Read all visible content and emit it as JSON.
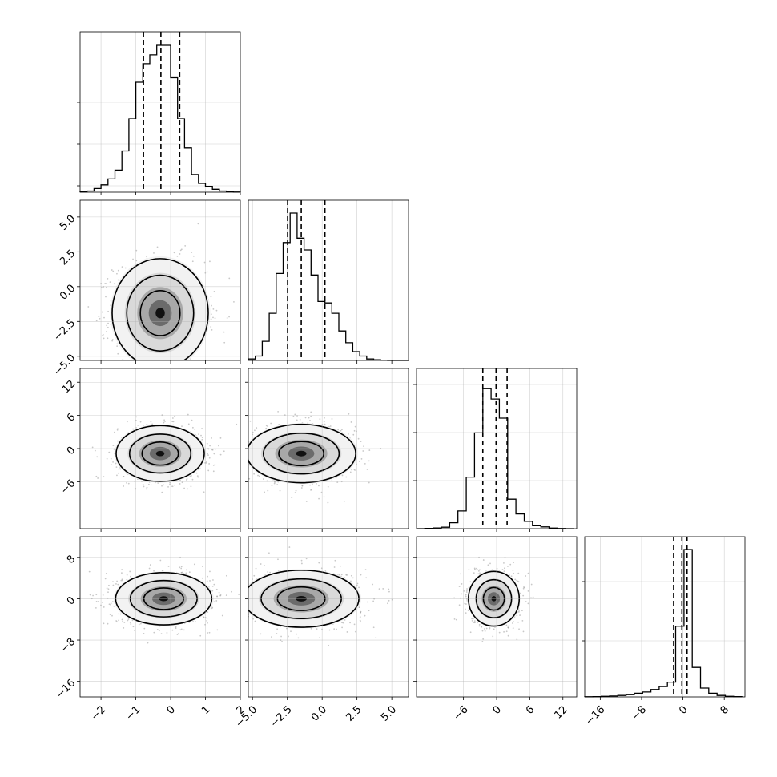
{
  "chart_data": {
    "type": "corner",
    "n_params": 4,
    "grid": true,
    "params": [
      {
        "lim": [
          -2.6,
          2.0
        ],
        "ticks": [
          -2,
          -1,
          0,
          1,
          2
        ],
        "tick_labels": [
          "−2",
          "−1",
          "0",
          "1",
          "2"
        ],
        "quantiles": [
          -0.78,
          -0.28,
          0.26
        ],
        "hist": {
          "edges": [
            -2.6,
            -2.4,
            -2.2,
            -2.0,
            -1.8,
            -1.6,
            -1.4,
            -1.2,
            -1.0,
            -0.8,
            -0.6,
            -0.4,
            -0.2,
            0.0,
            0.2,
            0.4,
            0.6,
            0.8,
            1.0,
            1.2,
            1.4,
            1.6,
            1.8,
            2.0
          ],
          "counts": [
            0.002,
            0.008,
            0.025,
            0.05,
            0.09,
            0.15,
            0.28,
            0.5,
            0.75,
            0.87,
            0.93,
            1.0,
            1.0,
            0.78,
            0.5,
            0.3,
            0.12,
            0.06,
            0.04,
            0.02,
            0.008,
            0.003,
            0.001
          ]
        },
        "hist_yticks": [
          0.04,
          0.3,
          0.56
        ]
      },
      {
        "lim": [
          -5.3,
          6.2
        ],
        "ticks": [
          -5.0,
          -2.5,
          0.0,
          2.5,
          5.0
        ],
        "tick_labels": [
          "−5.0",
          "−2.5",
          "0.0",
          "2.5",
          "5.0"
        ],
        "quantiles": [
          -2.48,
          -1.5,
          0.2
        ],
        "hist": {
          "edges": [
            -5.3,
            -4.8,
            -4.3,
            -3.8,
            -3.3,
            -2.8,
            -2.3,
            -1.8,
            -1.3,
            -0.8,
            -0.3,
            0.2,
            0.7,
            1.2,
            1.7,
            2.2,
            2.7,
            3.2,
            3.7,
            4.2,
            4.7,
            5.2,
            5.7,
            6.2
          ],
          "counts": [
            0.01,
            0.03,
            0.13,
            0.32,
            0.59,
            0.8,
            1.0,
            0.83,
            0.75,
            0.58,
            0.4,
            0.39,
            0.32,
            0.2,
            0.12,
            0.06,
            0.03,
            0.01,
            0.005,
            0.002,
            0.0,
            0.0,
            0.0
          ]
        },
        "hist_yticks": []
      },
      {
        "lim": [
          -14.5,
          14.5
        ],
        "ticks": [
          -6,
          0,
          6,
          12
        ],
        "tick_labels": [
          "−6",
          "0",
          "6",
          "12"
        ],
        "quantiles": [
          -2.5,
          -0.1,
          1.9
        ],
        "hist": {
          "edges": [
            -14.5,
            -13.0,
            -11.5,
            -10.0,
            -8.5,
            -7.0,
            -5.5,
            -4.0,
            -2.5,
            -1.0,
            0.5,
            2.0,
            3.5,
            5.0,
            6.5,
            8.0,
            9.5,
            11.0,
            12.5,
            14.0
          ],
          "counts": [
            0.0,
            0.002,
            0.005,
            0.01,
            0.04,
            0.12,
            0.35,
            0.65,
            0.95,
            0.88,
            0.75,
            0.2,
            0.1,
            0.05,
            0.02,
            0.012,
            0.004,
            0.001,
            0.0
          ]
        },
        "hist_yticks": [
          0.3,
          0.6,
          0.9
        ]
      },
      {
        "lim": [
          -19,
          12
        ],
        "ticks": [
          -16,
          -8,
          0,
          8
        ],
        "tick_labels": [
          "−16",
          "−8",
          "0",
          "8"
        ],
        "quantiles": [
          -1.8,
          -0.2,
          0.8
        ],
        "hist": {
          "edges": [
            -19,
            -17.4,
            -15.8,
            -14.2,
            -12.6,
            -11.0,
            -9.4,
            -7.8,
            -6.2,
            -4.6,
            -3.0,
            -1.4,
            0.2,
            1.8,
            3.4,
            5.0,
            6.6,
            8.2,
            9.8,
            11.4
          ],
          "counts": [
            0.001,
            0.002,
            0.004,
            0.006,
            0.01,
            0.015,
            0.025,
            0.033,
            0.05,
            0.07,
            0.1,
            0.48,
            1.0,
            0.2,
            0.06,
            0.025,
            0.01,
            0.004,
            0.002
          ]
        },
        "hist_yticks": [
          0.35,
          0.72
        ]
      }
    ],
    "pairs": [
      {
        "row": 1,
        "col": 0,
        "x_center": -0.3,
        "y_center": -1.9,
        "x_spread": 0.6,
        "y_spread": 1.7
      },
      {
        "row": 2,
        "col": 0,
        "x_center": -0.3,
        "y_center": -0.9,
        "x_spread": 0.55,
        "y_spread": 2.2
      },
      {
        "row": 2,
        "col": 1,
        "x_center": -1.5,
        "y_center": -0.9,
        "x_spread": 1.7,
        "y_spread": 2.3
      },
      {
        "row": 3,
        "col": 0,
        "x_center": -0.2,
        "y_center": 0.0,
        "x_spread": 0.6,
        "y_spread": 2.2
      },
      {
        "row": 3,
        "col": 1,
        "x_center": -1.5,
        "y_center": 0.0,
        "x_spread": 1.8,
        "y_spread": 2.4
      },
      {
        "row": 3,
        "col": 2,
        "x_center": -0.5,
        "y_center": 0.0,
        "x_spread": 2.0,
        "y_spread": 2.3
      }
    ]
  }
}
